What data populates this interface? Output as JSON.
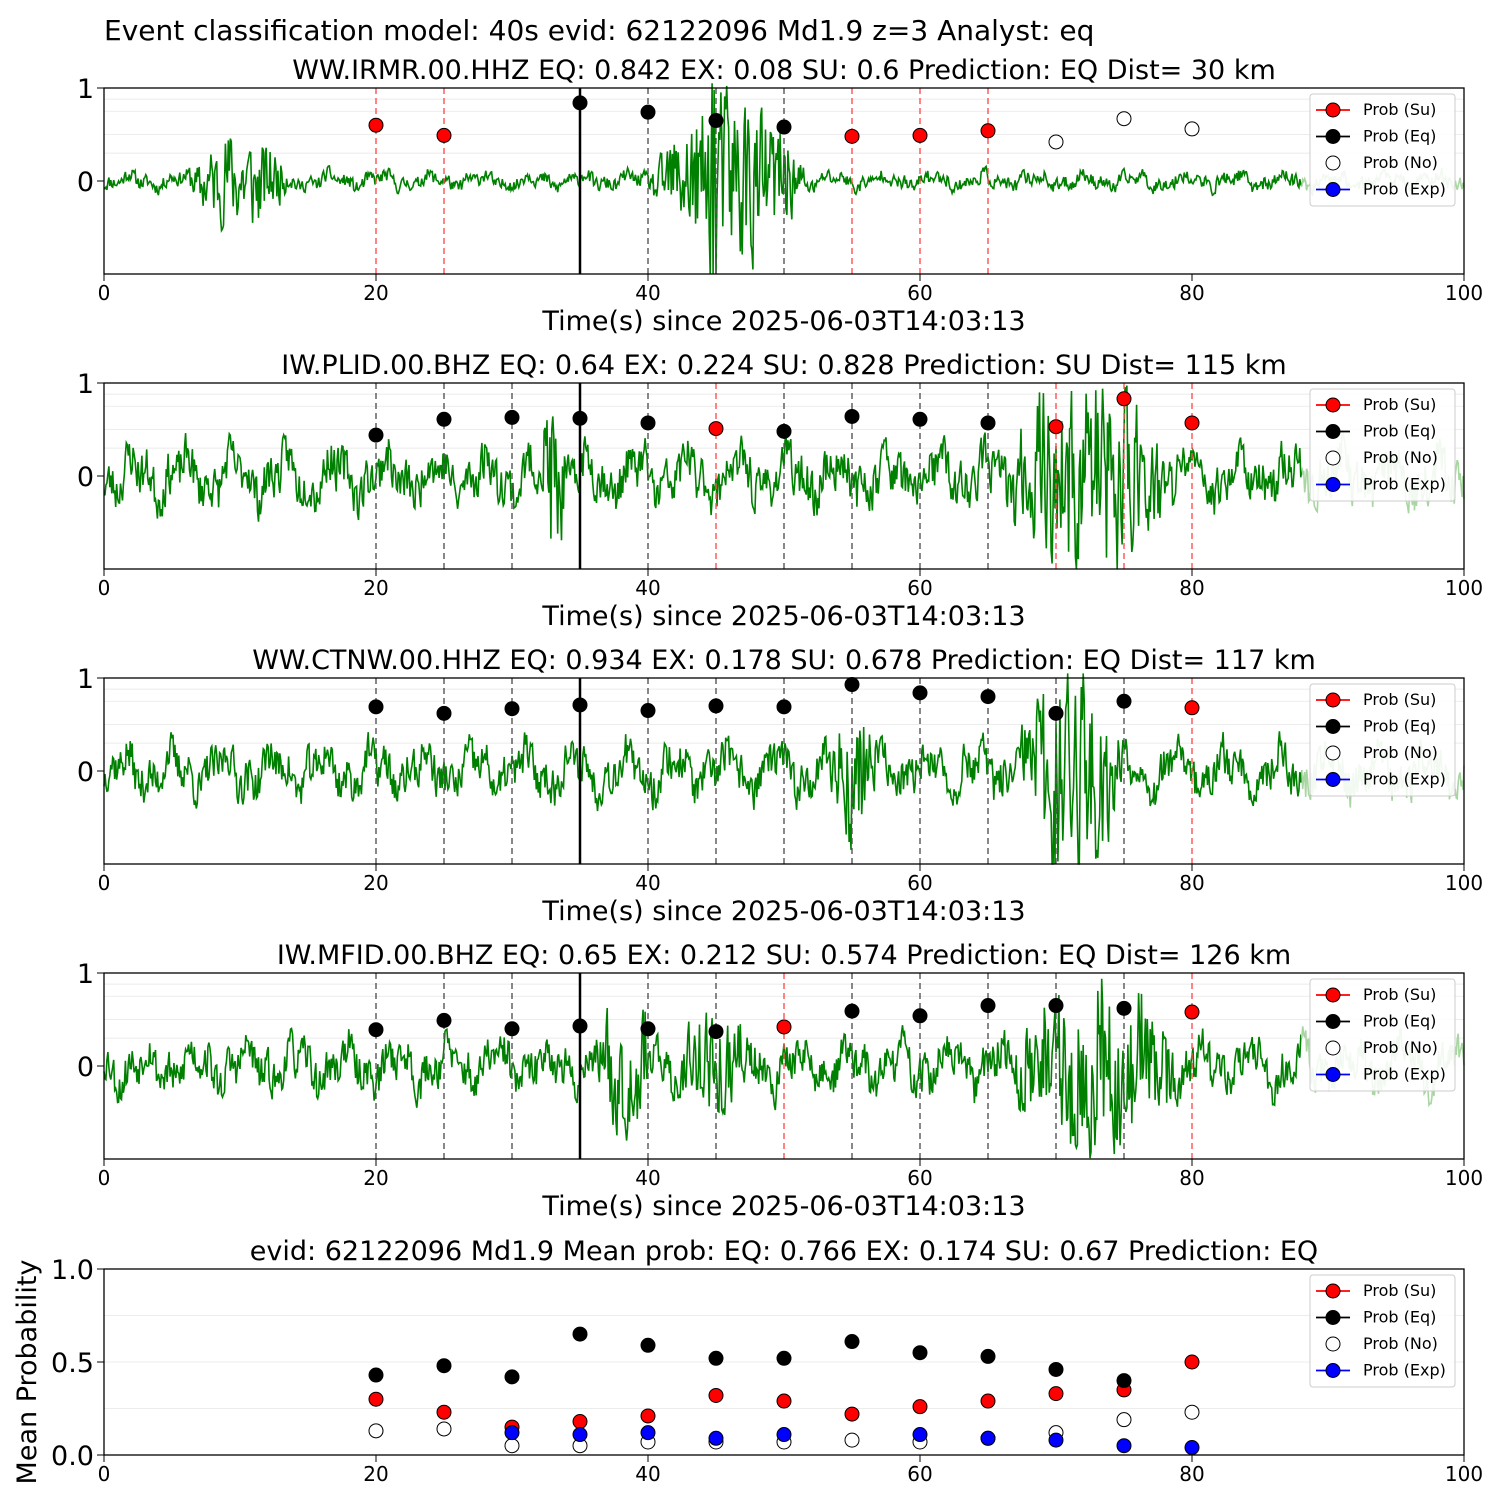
{
  "chart_data": {
    "type": "scatter",
    "title": "Event classification model: 40s evid: 62122096 Md1.9 z=3 Analyst: eq",
    "legend": [
      "Prob (Su)",
      "Prob (Eq)",
      "Prob (No)",
      "Prob (Exp)"
    ],
    "legend_position": "top-right",
    "colors": {
      "su": "#ff0000",
      "eq": "#000000",
      "no": "#ffffff",
      "exp": "#0000ff",
      "waveform": "#008000",
      "waveform_tail": "#a8d5a2",
      "red_line": "#ff5050",
      "gray_line": "#555555"
    },
    "xlim": [
      0,
      100
    ],
    "xticks": [
      "0",
      "20",
      "40",
      "60",
      "80",
      "100"
    ],
    "panels": [
      {
        "title": "WW.IRMR.00.HHZ   EQ: 0.842  EX: 0.08  SU: 0.6   Prediction: EQ    Dist= 30 km",
        "xlabel": "Time(s) since 2025-06-03T14:03:13",
        "yticks": [
          "1",
          "0"
        ],
        "onset": 35,
        "lines_red": [
          20,
          25,
          55,
          60,
          65
        ],
        "lines_gray": [
          40,
          45,
          50
        ],
        "points": [
          {
            "x": 20,
            "y": 0.6,
            "cls": "su"
          },
          {
            "x": 25,
            "y": 0.49,
            "cls": "su"
          },
          {
            "x": 35,
            "y": 0.84,
            "cls": "eq"
          },
          {
            "x": 40,
            "y": 0.74,
            "cls": "eq"
          },
          {
            "x": 45,
            "y": 0.65,
            "cls": "eq"
          },
          {
            "x": 50,
            "y": 0.58,
            "cls": "eq"
          },
          {
            "x": 55,
            "y": 0.48,
            "cls": "su"
          },
          {
            "x": 60,
            "y": 0.49,
            "cls": "su"
          },
          {
            "x": 65,
            "y": 0.54,
            "cls": "su"
          },
          {
            "x": 70,
            "y": 0.42,
            "cls": "no"
          },
          {
            "x": 75,
            "y": 0.67,
            "cls": "no"
          },
          {
            "x": 80,
            "y": 0.56,
            "cls": "no"
          }
        ],
        "wave": {
          "seed": 11,
          "bursts": [
            [
              6,
              14,
              0.45
            ],
            [
              40,
              52,
              0.9
            ],
            [
              44.5,
              45.2,
              1.6
            ]
          ],
          "base": 0.07
        }
      },
      {
        "title": "IW.PLID.00.BHZ   EQ: 0.64  EX: 0.224  SU: 0.828   Prediction: SU    Dist= 115 km",
        "xlabel": "Time(s) since 2025-06-03T14:03:13",
        "yticks": [
          "1",
          "0"
        ],
        "onset": 35,
        "lines_red": [
          45,
          70,
          75,
          80
        ],
        "lines_gray": [
          20,
          25,
          30,
          40,
          50,
          55,
          60,
          65
        ],
        "points": [
          {
            "x": 20,
            "y": 0.44,
            "cls": "eq"
          },
          {
            "x": 25,
            "y": 0.61,
            "cls": "eq"
          },
          {
            "x": 30,
            "y": 0.63,
            "cls": "eq"
          },
          {
            "x": 35,
            "y": 0.62,
            "cls": "eq"
          },
          {
            "x": 40,
            "y": 0.57,
            "cls": "eq"
          },
          {
            "x": 45,
            "y": 0.51,
            "cls": "su"
          },
          {
            "x": 50,
            "y": 0.48,
            "cls": "eq"
          },
          {
            "x": 55,
            "y": 0.64,
            "cls": "eq"
          },
          {
            "x": 60,
            "y": 0.61,
            "cls": "eq"
          },
          {
            "x": 65,
            "y": 0.57,
            "cls": "eq"
          },
          {
            "x": 70,
            "y": 0.53,
            "cls": "su"
          },
          {
            "x": 75,
            "y": 0.83,
            "cls": "su"
          },
          {
            "x": 80,
            "y": 0.57,
            "cls": "su"
          }
        ],
        "wave": {
          "seed": 23,
          "bursts": [
            [
              66,
              79,
              0.85
            ],
            [
              32,
              34,
              0.7
            ]
          ],
          "base": 0.22
        }
      },
      {
        "title": "WW.CTNW.00.HHZ   EQ: 0.934  EX: 0.178  SU: 0.678   Prediction: EQ    Dist= 117 km",
        "xlabel": "Time(s) since 2025-06-03T14:03:13",
        "yticks": [
          "1",
          "0"
        ],
        "onset": 35,
        "lines_red": [
          80
        ],
        "lines_gray": [
          20,
          25,
          30,
          40,
          45,
          50,
          55,
          60,
          65,
          70,
          75
        ],
        "points": [
          {
            "x": 20,
            "y": 0.69,
            "cls": "eq"
          },
          {
            "x": 25,
            "y": 0.62,
            "cls": "eq"
          },
          {
            "x": 30,
            "y": 0.67,
            "cls": "eq"
          },
          {
            "x": 35,
            "y": 0.71,
            "cls": "eq"
          },
          {
            "x": 40,
            "y": 0.65,
            "cls": "eq"
          },
          {
            "x": 45,
            "y": 0.7,
            "cls": "eq"
          },
          {
            "x": 50,
            "y": 0.69,
            "cls": "eq"
          },
          {
            "x": 55,
            "y": 0.93,
            "cls": "eq"
          },
          {
            "x": 60,
            "y": 0.84,
            "cls": "eq"
          },
          {
            "x": 65,
            "y": 0.8,
            "cls": "eq"
          },
          {
            "x": 70,
            "y": 0.62,
            "cls": "eq"
          },
          {
            "x": 75,
            "y": 0.75,
            "cls": "eq"
          },
          {
            "x": 80,
            "y": 0.68,
            "cls": "su"
          }
        ],
        "wave": {
          "seed": 37,
          "bursts": [
            [
              67,
              75,
              0.95
            ],
            [
              53,
              57,
              0.5
            ]
          ],
          "base": 0.2
        }
      },
      {
        "title": "IW.MFID.00.BHZ   EQ: 0.65  EX: 0.212  SU: 0.574   Prediction: EQ    Dist= 126 km",
        "xlabel": "Time(s) since 2025-06-03T14:03:13",
        "yticks": [
          "1",
          "0"
        ],
        "onset": 35,
        "lines_red": [
          50,
          80
        ],
        "lines_gray": [
          20,
          25,
          30,
          40,
          45,
          55,
          60,
          65,
          70,
          75
        ],
        "points": [
          {
            "x": 20,
            "y": 0.39,
            "cls": "eq"
          },
          {
            "x": 25,
            "y": 0.49,
            "cls": "eq"
          },
          {
            "x": 30,
            "y": 0.4,
            "cls": "eq"
          },
          {
            "x": 35,
            "y": 0.43,
            "cls": "eq"
          },
          {
            "x": 40,
            "y": 0.4,
            "cls": "eq"
          },
          {
            "x": 45,
            "y": 0.37,
            "cls": "eq"
          },
          {
            "x": 50,
            "y": 0.42,
            "cls": "su"
          },
          {
            "x": 55,
            "y": 0.59,
            "cls": "eq"
          },
          {
            "x": 60,
            "y": 0.54,
            "cls": "eq"
          },
          {
            "x": 65,
            "y": 0.65,
            "cls": "eq"
          },
          {
            "x": 70,
            "y": 0.65,
            "cls": "eq"
          },
          {
            "x": 75,
            "y": 0.62,
            "cls": "eq"
          },
          {
            "x": 80,
            "y": 0.58,
            "cls": "su"
          }
        ],
        "wave": {
          "seed": 53,
          "bursts": [
            [
              66,
              80,
              0.8
            ],
            [
              36,
              41,
              0.45
            ],
            [
              42,
              48,
              0.4
            ]
          ],
          "base": 0.2
        }
      }
    ],
    "mean_panel": {
      "title": "evid: 62122096  Md1.9   Mean prob:   EQ: 0.766  EX: 0.174  SU: 0.67   Prediction: EQ",
      "ylabel": "Mean Probability",
      "ylim": [
        0,
        1
      ],
      "yticks": [
        "1.0",
        "0.5",
        "0.0"
      ],
      "x": [
        20,
        25,
        30,
        35,
        40,
        45,
        50,
        55,
        60,
        65,
        70,
        75,
        80
      ],
      "series": [
        {
          "name": "Prob (Su)",
          "cls": "su",
          "values": [
            0.3,
            0.23,
            0.15,
            0.18,
            0.21,
            0.32,
            0.29,
            0.22,
            0.26,
            0.29,
            0.33,
            0.35,
            0.5
          ]
        },
        {
          "name": "Prob (Eq)",
          "cls": "eq",
          "values": [
            0.43,
            0.48,
            0.42,
            0.65,
            0.59,
            0.52,
            0.52,
            0.61,
            0.55,
            0.53,
            0.46,
            0.4,
            null
          ]
        },
        {
          "name": "Prob (No)",
          "cls": "no",
          "values": [
            0.13,
            0.14,
            0.05,
            0.05,
            0.07,
            0.07,
            0.07,
            0.08,
            0.07,
            0.09,
            0.12,
            0.19,
            0.23
          ]
        },
        {
          "name": "Prob (Exp)",
          "cls": "exp",
          "values": [
            null,
            null,
            0.12,
            0.11,
            0.12,
            0.09,
            0.11,
            null,
            0.11,
            0.09,
            0.08,
            0.05,
            0.04
          ]
        }
      ]
    }
  }
}
